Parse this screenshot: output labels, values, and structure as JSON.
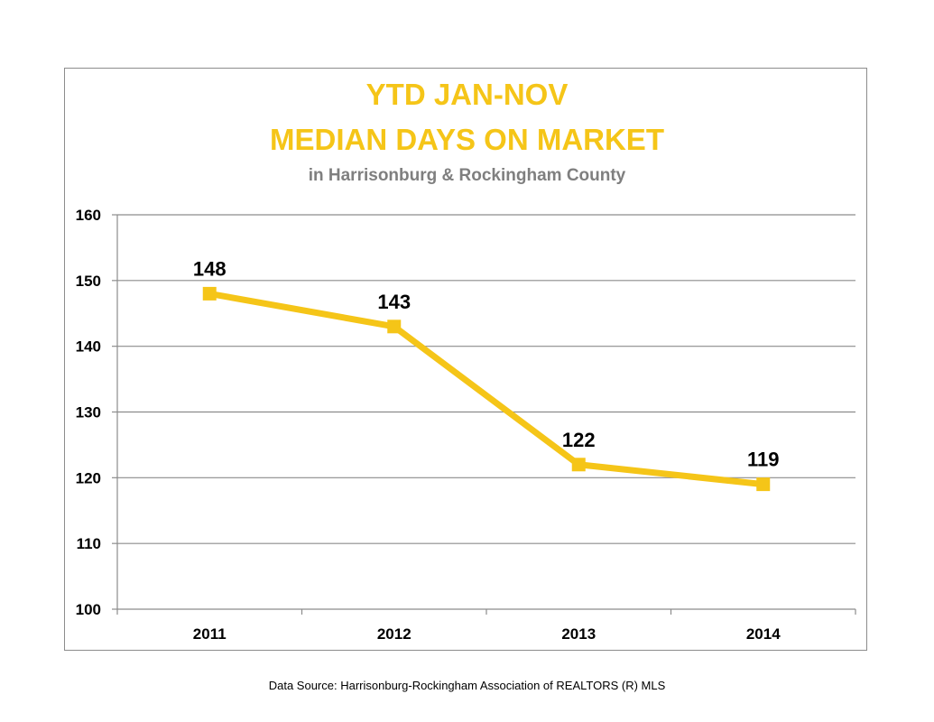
{
  "chart_data": {
    "type": "line",
    "title": "YTD JAN-NOV",
    "title_line2": "MEDIAN DAYS ON MARKET",
    "subtitle": "in Harrisonburg  & Rockingham County",
    "categories": [
      "2011",
      "2012",
      "2013",
      "2014"
    ],
    "series": [
      {
        "values": [
          148,
          143,
          122,
          119
        ],
        "color": "#f5c518",
        "marker": "square"
      }
    ],
    "data_labels": [
      "148",
      "143",
      "122",
      "119"
    ],
    "ylim": [
      100,
      160
    ],
    "yticks": [
      100,
      110,
      120,
      130,
      140,
      150,
      160
    ],
    "ytick_labels": [
      "100",
      "110",
      "120",
      "130",
      "140",
      "150",
      "160"
    ],
    "xlabel": "",
    "ylabel": "",
    "grid": true
  },
  "footer": {
    "source": "Data Source: Harrisonburg-Rockingham Association of REALTORS (R) MLS"
  }
}
